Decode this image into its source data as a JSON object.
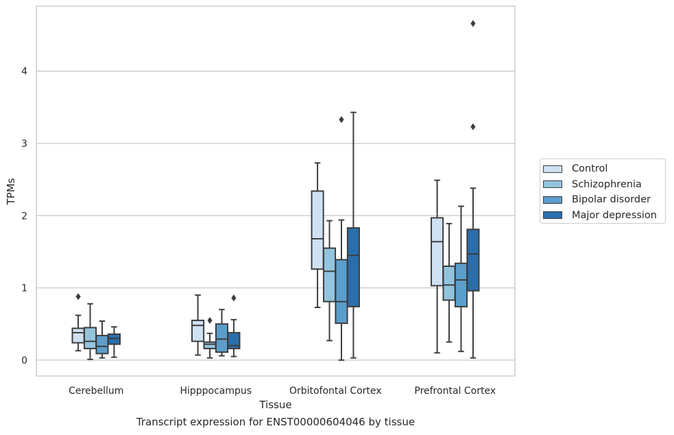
{
  "chart_data": {
    "type": "boxplot",
    "caption": "Transcript expression for ENST00000604046 by tissue",
    "xlabel": "Tissue",
    "ylabel": "TPMs",
    "ylim": [
      -0.22,
      4.9
    ],
    "yticks": [
      0,
      1,
      2,
      3,
      4
    ],
    "grid": "horizontal",
    "legend_position": "right",
    "categories": [
      "Cerebellum",
      "Hipppocampus",
      "Orbitofontal Cortex",
      "Prefrontal Cortex"
    ],
    "series": [
      {
        "name": "Control",
        "color": "#cfe1f2",
        "boxes": [
          {
            "min": 0.13,
            "q1": 0.24,
            "median": 0.38,
            "q3": 0.44,
            "max": 0.62,
            "outliers": [
              0.88
            ]
          },
          {
            "min": 0.07,
            "q1": 0.26,
            "median": 0.48,
            "q3": 0.55,
            "max": 0.9,
            "outliers": []
          },
          {
            "min": 0.73,
            "q1": 1.26,
            "median": 1.68,
            "q3": 2.34,
            "max": 2.73,
            "outliers": []
          },
          {
            "min": 0.1,
            "q1": 1.03,
            "median": 1.64,
            "q3": 1.97,
            "max": 2.49,
            "outliers": []
          }
        ]
      },
      {
        "name": "Schizophrenia",
        "color": "#93c4de",
        "boxes": [
          {
            "min": 0.01,
            "q1": 0.16,
            "median": 0.26,
            "q3": 0.45,
            "max": 0.78,
            "outliers": []
          },
          {
            "min": 0.03,
            "q1": 0.16,
            "median": 0.22,
            "q3": 0.25,
            "max": 0.37,
            "outliers": [
              0.55
            ]
          },
          {
            "min": 0.27,
            "q1": 0.81,
            "median": 1.23,
            "q3": 1.55,
            "max": 1.93,
            "outliers": []
          },
          {
            "min": 0.25,
            "q1": 0.83,
            "median": 1.04,
            "q3": 1.3,
            "max": 1.89,
            "outliers": []
          }
        ]
      },
      {
        "name": "Bipolar disorder",
        "color": "#5b9ecb",
        "boxes": [
          {
            "min": 0.03,
            "q1": 0.09,
            "median": 0.19,
            "q3": 0.34,
            "max": 0.54,
            "outliers": []
          },
          {
            "min": 0.06,
            "q1": 0.11,
            "median": 0.29,
            "q3": 0.5,
            "max": 0.7,
            "outliers": []
          },
          {
            "min": 0.0,
            "q1": 0.51,
            "median": 0.81,
            "q3": 1.39,
            "max": 1.94,
            "outliers": [
              3.33
            ]
          },
          {
            "min": 0.12,
            "q1": 0.74,
            "median": 1.11,
            "q3": 1.34,
            "max": 2.13,
            "outliers": []
          }
        ]
      },
      {
        "name": "Major depression",
        "color": "#2a6eac",
        "boxes": [
          {
            "min": 0.04,
            "q1": 0.22,
            "median": 0.3,
            "q3": 0.36,
            "max": 0.46,
            "outliers": []
          },
          {
            "min": 0.05,
            "q1": 0.16,
            "median": 0.2,
            "q3": 0.38,
            "max": 0.56,
            "outliers": [
              0.86
            ]
          },
          {
            "min": 0.03,
            "q1": 0.74,
            "median": 1.45,
            "q3": 1.83,
            "max": 3.43,
            "outliers": []
          },
          {
            "min": 0.03,
            "q1": 0.96,
            "median": 1.47,
            "q3": 1.81,
            "max": 2.38,
            "outliers": [
              3.23,
              4.66
            ]
          }
        ]
      }
    ]
  }
}
